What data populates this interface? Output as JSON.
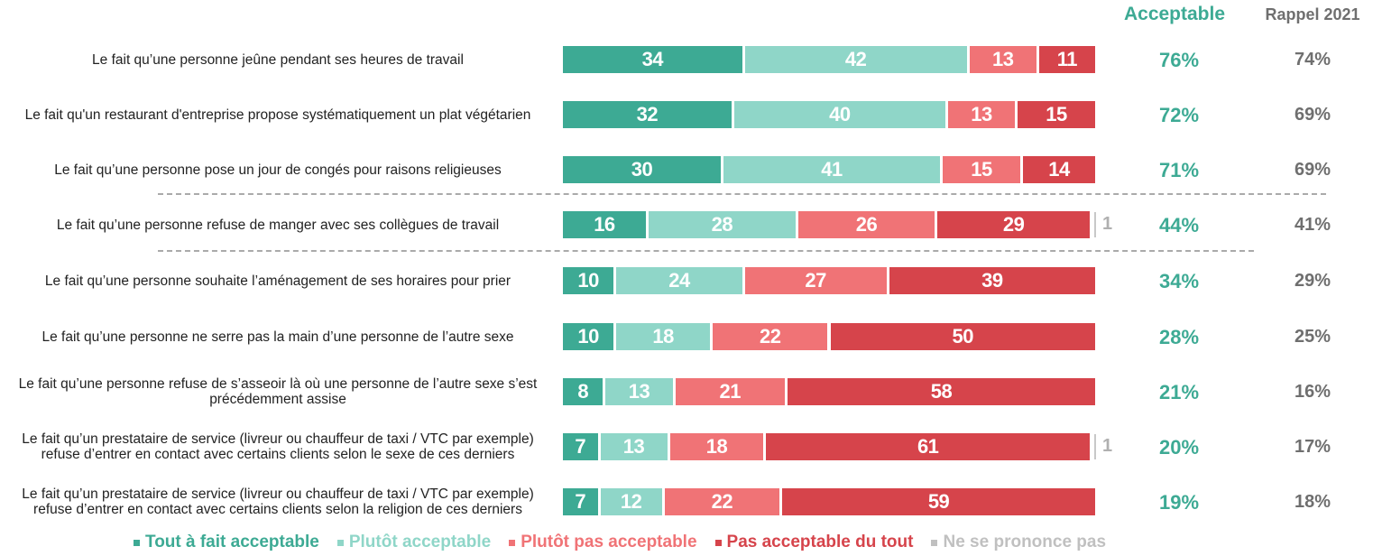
{
  "chart_data": {
    "type": "bar",
    "orientation": "horizontal-stacked-100",
    "headers": {
      "acceptable": "Acceptable",
      "rappel": "Rappel 2021"
    },
    "series": [
      {
        "name": "Tout à fait acceptable",
        "color": "#3daa94"
      },
      {
        "name": "Plutôt acceptable",
        "color": "#8fd6c8"
      },
      {
        "name": "Plutôt pas acceptable",
        "color": "#f07376"
      },
      {
        "name": "Pas acceptable du tout",
        "color": "#d6444b"
      },
      {
        "name": "Ne se prononce pas",
        "color": "#c8c8c8"
      }
    ],
    "categories": [
      "Le fait qu’une personne jeûne pendant ses heures de travail",
      "Le fait qu'un restaurant d'entreprise propose systématiquement un plat végétarien",
      "Le fait qu’une personne pose un jour de congés pour raisons religieuses",
      "Le fait qu’une personne refuse de manger avec ses collègues de travail",
      "Le fait qu’une personne souhaite l’aménagement de ses horaires pour prier",
      "Le fait qu’une personne ne serre pas la main d’une personne de l’autre sexe",
      "Le fait qu’une personne refuse de s’asseoir là où une personne de l’autre sexe s’est précédemment assise",
      "Le fait qu’un prestataire de service (livreur ou chauffeur de taxi / VTC par exemple) refuse d’entrer en contact avec certains clients selon le sexe de ces derniers",
      "Le fait qu’un prestataire de service (livreur ou chauffeur de taxi / VTC par exemple) refuse d’entrer en contact avec certains clients selon la religion de ces derniers"
    ],
    "rows": [
      {
        "values": [
          34,
          42,
          13,
          11,
          0
        ],
        "acceptable": "76%",
        "rappel": "74%"
      },
      {
        "values": [
          32,
          40,
          13,
          15,
          0
        ],
        "acceptable": "72%",
        "rappel": "69%"
      },
      {
        "values": [
          30,
          41,
          15,
          14,
          0
        ],
        "acceptable": "71%",
        "rappel": "69%"
      },
      {
        "values": [
          16,
          28,
          26,
          29,
          1
        ],
        "acceptable": "44%",
        "rappel": "41%"
      },
      {
        "values": [
          10,
          24,
          27,
          39,
          0
        ],
        "acceptable": "34%",
        "rappel": "29%"
      },
      {
        "values": [
          10,
          18,
          22,
          50,
          0
        ],
        "acceptable": "28%",
        "rappel": "25%"
      },
      {
        "values": [
          8,
          13,
          21,
          58,
          0
        ],
        "acceptable": "21%",
        "rappel": "16%"
      },
      {
        "values": [
          7,
          13,
          18,
          61,
          1
        ],
        "acceptable": "20%",
        "rappel": "17%"
      },
      {
        "values": [
          7,
          12,
          22,
          59,
          0
        ],
        "acceptable": "19%",
        "rappel": "18%"
      }
    ],
    "separators_after_rows": [
      2,
      3
    ],
    "legend_position": "bottom",
    "unit": "%"
  }
}
